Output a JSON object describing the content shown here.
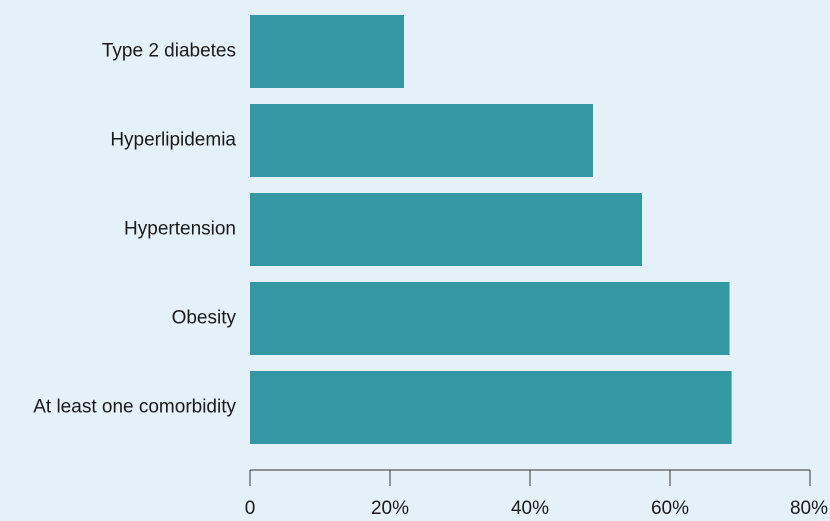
{
  "chart_data": {
    "type": "bar",
    "orientation": "horizontal",
    "categories": [
      "Type 2 diabetes",
      "Hyperlipidemia",
      "Hypertension",
      "Obesity",
      "At least one comorbidity"
    ],
    "values": [
      22,
      49,
      56,
      68.5,
      68.8
    ],
    "xlim": [
      0,
      80
    ],
    "xticks": [
      0,
      20,
      40,
      60,
      80
    ],
    "xtick_labels": [
      "0",
      "20%",
      "40%",
      "60%",
      "80%"
    ],
    "bar_color": "#3498a4",
    "background": "#e4f1f9",
    "grid": false,
    "legend": "none",
    "title": "",
    "xlabel": "",
    "ylabel": ""
  }
}
